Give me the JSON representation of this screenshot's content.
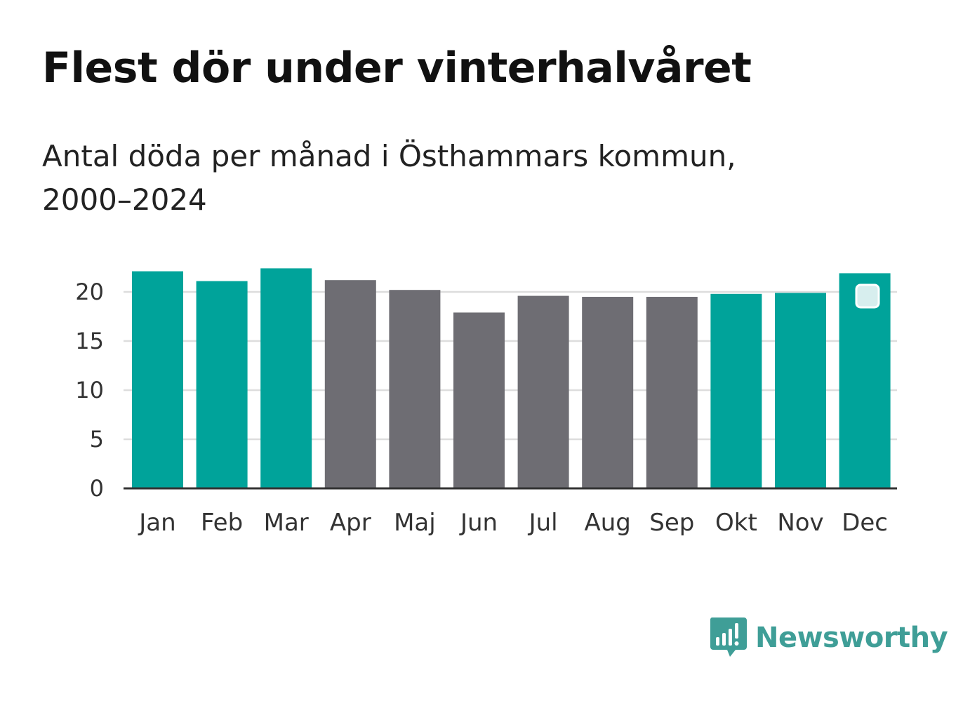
{
  "colors": {
    "winter": "#00a39a",
    "summer": "#6e6d73",
    "grid": "#dddddd",
    "axis": "#333333",
    "brand": "#3f9e97"
  },
  "chart_data": {
    "type": "bar",
    "title": "Flest dör under vinterhalvåret",
    "subtitle": "Antal döda per månad i Östhammars kommun, 2000–2024",
    "categories": [
      "Jan",
      "Feb",
      "Mar",
      "Apr",
      "Maj",
      "Jun",
      "Jul",
      "Aug",
      "Sep",
      "Okt",
      "Nov",
      "Dec"
    ],
    "values": [
      22.1,
      21.1,
      22.4,
      21.2,
      20.2,
      17.9,
      19.6,
      19.5,
      19.5,
      19.8,
      19.9,
      21.9
    ],
    "groups": [
      "winter",
      "winter",
      "winter",
      "summer",
      "summer",
      "summer",
      "summer",
      "summer",
      "summer",
      "winter",
      "winter",
      "winter"
    ],
    "yticks": [
      0,
      5,
      10,
      15,
      20
    ],
    "ylim": [
      0,
      22.4
    ],
    "xlabel": "",
    "ylabel": "",
    "grid": true,
    "legend": "none"
  },
  "branding": {
    "logo_icon": "bar-chart-speech-bubble-icon",
    "logo_text": "Newsworthy"
  }
}
